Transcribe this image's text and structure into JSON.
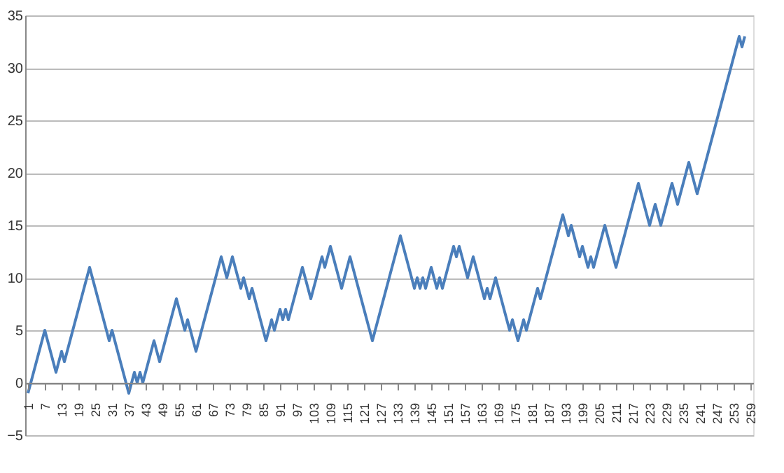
{
  "chart_data": {
    "type": "line",
    "x": [
      1,
      7,
      11,
      13,
      14,
      23,
      30,
      31,
      37,
      39,
      40,
      41,
      42,
      46,
      48,
      54,
      57,
      58,
      61,
      70,
      72,
      74,
      77,
      78,
      80,
      81,
      86,
      88,
      89,
      91,
      92,
      93,
      94,
      99,
      102,
      106,
      107,
      109,
      113,
      116,
      124,
      134,
      139,
      140,
      141,
      142,
      143,
      145,
      147,
      148,
      149,
      153,
      154,
      155,
      158,
      160,
      164,
      165,
      166,
      168,
      173,
      174,
      176,
      178,
      179,
      183,
      184,
      192,
      194,
      195,
      198,
      199,
      201,
      202,
      203,
      207,
      211,
      219,
      223,
      225,
      227,
      231,
      233,
      237,
      240,
      255,
      256,
      257
    ],
    "series": [
      {
        "color": "#4a7ebb",
        "values": [
          -1,
          5,
          1,
          3,
          2,
          11,
          4,
          5,
          -1,
          1,
          0,
          1,
          0,
          4,
          2,
          8,
          5,
          6,
          3,
          12,
          10,
          12,
          9,
          10,
          8,
          9,
          4,
          6,
          5,
          7,
          6,
          7,
          6,
          11,
          8,
          12,
          11,
          13,
          9,
          12,
          4,
          14,
          9,
          10,
          9,
          10,
          9,
          11,
          9,
          10,
          9,
          13,
          12,
          13,
          10,
          12,
          8,
          9,
          8,
          10,
          5,
          6,
          4,
          6,
          5,
          9,
          8,
          16,
          14,
          15,
          12,
          13,
          11,
          12,
          11,
          15,
          11,
          19,
          15,
          17,
          15,
          19,
          17,
          21,
          18,
          33,
          32,
          33
        ]
      }
    ],
    "xlim": [
      0,
      260
    ],
    "xticks": [
      1,
      7,
      13,
      19,
      25,
      31,
      37,
      43,
      49,
      55,
      61,
      67,
      73,
      79,
      85,
      91,
      97,
      103,
      109,
      115,
      121,
      127,
      133,
      139,
      145,
      151,
      157,
      163,
      169,
      175,
      181,
      187,
      193,
      199,
      205,
      211,
      217,
      223,
      229,
      235,
      241,
      247,
      253,
      259
    ],
    "ylim": [
      -5,
      35
    ],
    "yticks": [
      -5,
      0,
      5,
      10,
      15,
      20,
      25,
      30,
      35
    ],
    "grid": "y",
    "marker": "none",
    "line_style": "solid"
  }
}
